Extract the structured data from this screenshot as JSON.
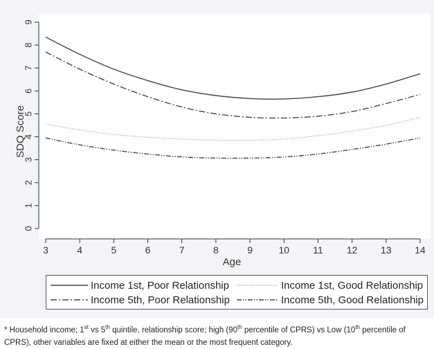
{
  "chart_data": {
    "type": "line",
    "title": "",
    "xlabel": "Age",
    "ylabel": "SDQ Score",
    "xlim": [
      3,
      14
    ],
    "ylim": [
      0,
      9
    ],
    "x_ticks": [
      3,
      4,
      5,
      6,
      7,
      8,
      9,
      10,
      11,
      12,
      13,
      14
    ],
    "y_ticks": [
      0,
      1,
      2,
      3,
      4,
      5,
      6,
      7,
      8,
      9
    ],
    "grid": false,
    "legend_position": "bottom",
    "x": [
      3,
      4,
      5,
      6,
      7,
      8,
      9,
      10,
      11,
      12,
      13,
      14
    ],
    "series": [
      {
        "name": "Income 1st, Poor Relationship",
        "style": "solid",
        "color": "#444444",
        "values": [
          8.35,
          7.6,
          6.95,
          6.45,
          6.05,
          5.8,
          5.67,
          5.65,
          5.75,
          5.95,
          6.3,
          6.75
        ]
      },
      {
        "name": "Income 1st, Good Relationship",
        "style": "dotted",
        "color": "#b0b0b0",
        "values": [
          4.55,
          4.3,
          4.1,
          3.98,
          3.9,
          3.85,
          3.85,
          3.9,
          4.05,
          4.25,
          4.5,
          4.85
        ]
      },
      {
        "name": "Income 5th, Poor Relationship",
        "style": "dashdot",
        "color": "#444444",
        "values": [
          7.7,
          6.95,
          6.3,
          5.75,
          5.3,
          5.0,
          4.85,
          4.82,
          4.9,
          5.1,
          5.45,
          5.85
        ]
      },
      {
        "name": "Income 5th, Good Relationship",
        "style": "dashdotdot",
        "color": "#444444",
        "values": [
          3.95,
          3.65,
          3.42,
          3.25,
          3.12,
          3.07,
          3.07,
          3.12,
          3.25,
          3.45,
          3.68,
          3.95
        ]
      }
    ]
  },
  "footnote": {
    "parts": [
      "* Household income; 1",
      "st",
      " vs 5",
      "th",
      " quintile, relationship score; high (90",
      "th",
      " percentile of CPRS) vs Low (10",
      "th",
      " percentile of CPRS), other variables are fixed at either the mean or the most frequent category."
    ]
  }
}
